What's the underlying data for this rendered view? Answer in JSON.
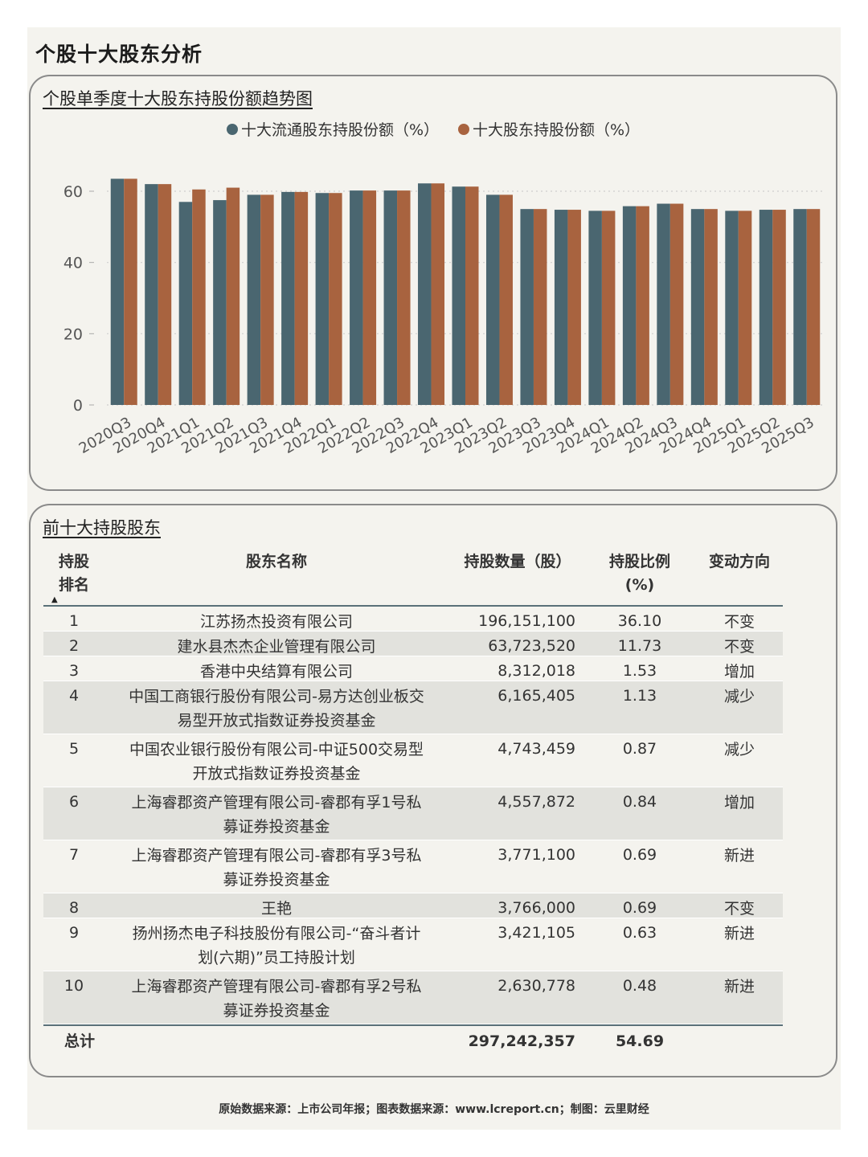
{
  "page_title": "个股十大股东分析",
  "chart_card_title": "个股单季度十大股东持股份额趋势图",
  "table_card_title": "前十大持股股东",
  "colors": {
    "series1": "#4a6670",
    "series2": "#a8633f",
    "grid": "#cfcfcf"
  },
  "chart_data": {
    "type": "bar",
    "categories": [
      "2020Q3",
      "2020Q4",
      "2021Q1",
      "2021Q2",
      "2021Q3",
      "2021Q4",
      "2022Q1",
      "2022Q2",
      "2022Q3",
      "2022Q4",
      "2023Q1",
      "2023Q2",
      "2023Q3",
      "2023Q4",
      "2024Q1",
      "2024Q2",
      "2024Q3",
      "2024Q4",
      "2025Q1",
      "2025Q2",
      "2025Q3"
    ],
    "series": [
      {
        "name": "十大流通股东持股份额（%）",
        "values": [
          63.5,
          62.0,
          57.0,
          57.5,
          59.0,
          59.8,
          59.5,
          60.2,
          60.2,
          62.2,
          61.3,
          59.0,
          55.0,
          54.8,
          54.5,
          55.8,
          56.5,
          55.0,
          54.5,
          54.8,
          55.0
        ]
      },
      {
        "name": "十大股东持股份额（%）",
        "values": [
          63.5,
          62.0,
          60.5,
          61.0,
          59.0,
          59.8,
          59.5,
          60.2,
          60.2,
          62.2,
          61.3,
          59.0,
          55.0,
          54.8,
          54.5,
          55.8,
          56.5,
          55.0,
          54.5,
          54.8,
          55.0
        ]
      }
    ],
    "yticks": [
      0,
      20,
      40,
      60
    ],
    "ylim": [
      0,
      70
    ],
    "grid": true,
    "legend_position": "top-center"
  },
  "table": {
    "headers": {
      "rank": [
        "持股",
        "排名"
      ],
      "name": "股东名称",
      "shares": "持股数量（股）",
      "ratio": [
        "持股比例",
        "(%)"
      ],
      "direction": "变动方向"
    },
    "rows": [
      {
        "rank": "1",
        "name": [
          "江苏扬杰投资有限公司"
        ],
        "shares": "196,151,100",
        "ratio": "36.10",
        "direction": "不变"
      },
      {
        "rank": "2",
        "name": [
          "建水县杰杰企业管理有限公司"
        ],
        "shares": "63,723,520",
        "ratio": "11.73",
        "direction": "不变"
      },
      {
        "rank": "3",
        "name": [
          "香港中央结算有限公司"
        ],
        "shares": "8,312,018",
        "ratio": "1.53",
        "direction": "增加"
      },
      {
        "rank": "4",
        "name": [
          "中国工商银行股份有限公司-易方达创业板交",
          "易型开放式指数证券投资基金"
        ],
        "shares": "6,165,405",
        "ratio": "1.13",
        "direction": "减少"
      },
      {
        "rank": "5",
        "name": [
          "中国农业银行股份有限公司-中证500交易型",
          "开放式指数证券投资基金"
        ],
        "shares": "4,743,459",
        "ratio": "0.87",
        "direction": "减少"
      },
      {
        "rank": "6",
        "name": [
          "上海睿郡资产管理有限公司-睿郡有孚1号私",
          "募证券投资基金"
        ],
        "shares": "4,557,872",
        "ratio": "0.84",
        "direction": "增加"
      },
      {
        "rank": "7",
        "name": [
          "上海睿郡资产管理有限公司-睿郡有孚3号私",
          "募证券投资基金"
        ],
        "shares": "3,771,100",
        "ratio": "0.69",
        "direction": "新进"
      },
      {
        "rank": "8",
        "name": [
          "王艳"
        ],
        "shares": "3,766,000",
        "ratio": "0.69",
        "direction": "不变"
      },
      {
        "rank": "9",
        "name": [
          "扬州扬杰电子科技股份有限公司-“奋斗者计",
          "划(六期)”员工持股计划"
        ],
        "shares": "3,421,105",
        "ratio": "0.63",
        "direction": "新进"
      },
      {
        "rank": "10",
        "name": [
          "上海睿郡资产管理有限公司-睿郡有孚2号私",
          "募证券投资基金"
        ],
        "shares": "2,630,778",
        "ratio": "0.48",
        "direction": "新进"
      }
    ],
    "total": {
      "label": "总计",
      "shares": "297,242,357",
      "ratio": "54.69"
    }
  },
  "footer": "原始数据来源：上市公司年报；图表数据来源：www.lcreport.cn；制图：云里财经"
}
